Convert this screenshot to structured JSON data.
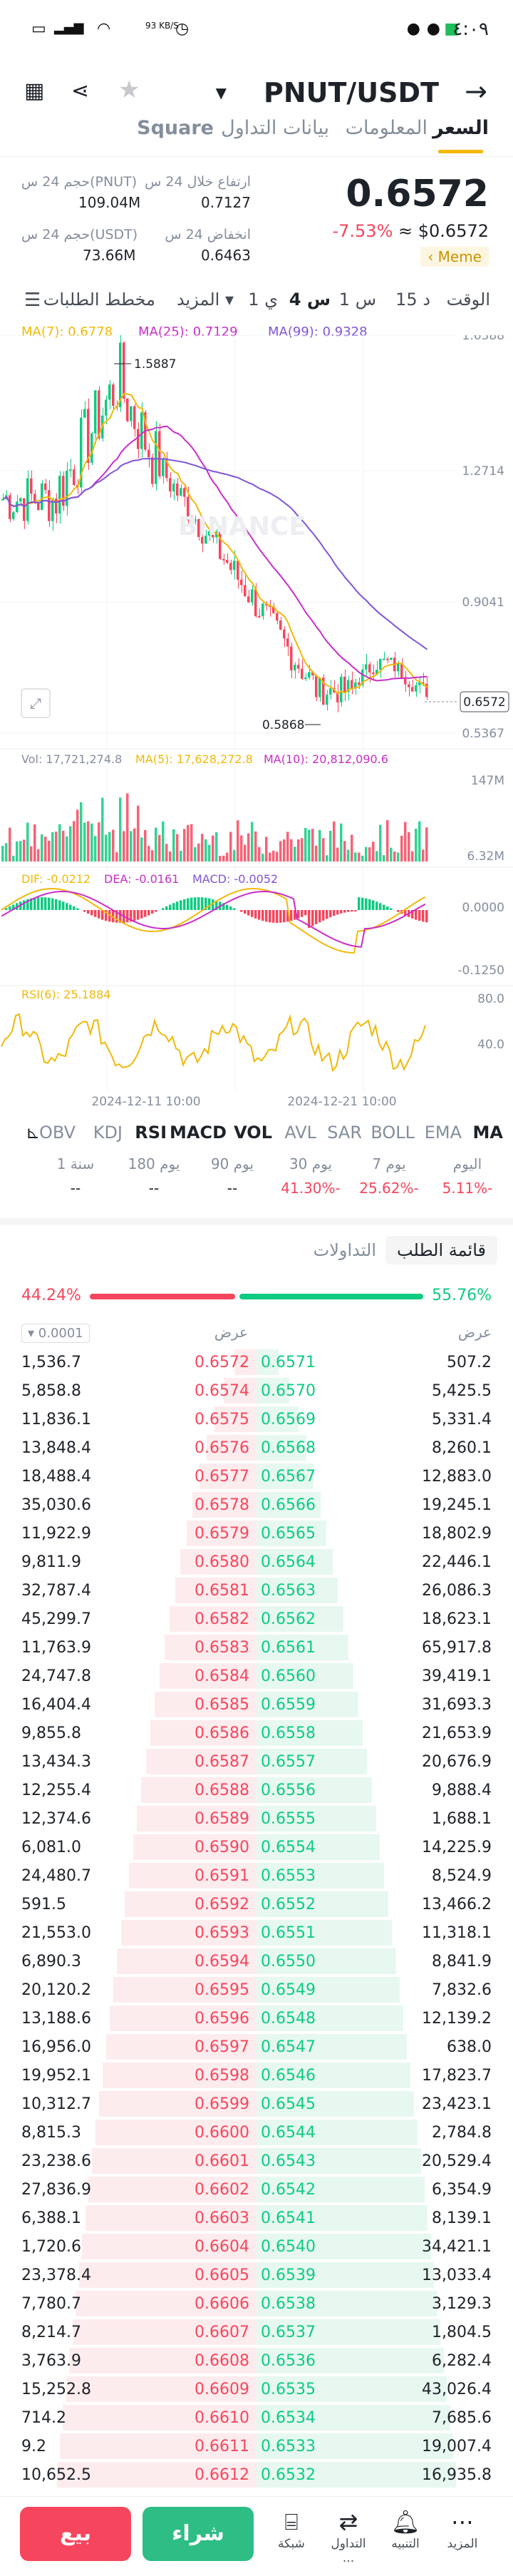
{
  "status": {
    "time": "٤:٠٩",
    "net": "93 KB/S"
  },
  "header": {
    "pair": "PNUT/USDT",
    "back_icon": "arrow-right-icon"
  },
  "tabs": [
    "السعر",
    "المعلومات",
    "بيانات التداول",
    "Square"
  ],
  "ticker": {
    "price": "0.6572",
    "change_pct": "-7.53%",
    "approx": "≈ $0.6572",
    "tag": "Meme"
  },
  "stats": {
    "high_label": "ارتفاع خلال 24 س",
    "high_value": "0.7127",
    "low_label": "انخفاض 24 س",
    "low_value": "0.6463",
    "vol_base_label": "حجم 24 س(PNUT)",
    "vol_base_value": "109.04M",
    "vol_quote_label": "حجم 24 س(USDT)",
    "vol_quote_value": "73.66M"
  },
  "timeframes": {
    "time": "الوقت",
    "m15": "15 د",
    "h1": "1 س",
    "h4": "4 س",
    "d1": "1 ي",
    "more": "المزيد ▾",
    "depth": "مخطط الطلبات"
  },
  "ma_line": {
    "ma7": "MA(7): 0.6778",
    "ma25": "MA(25): 0.7129",
    "ma99": "MA(99): 0.9328"
  },
  "chart_data": [
    {
      "type": "candlestick",
      "name": "price",
      "y_ticks": [
        "1.6388",
        "1.2714",
        "0.9041",
        "0.5367"
      ],
      "ylim": [
        0.5367,
        1.6388
      ],
      "high_label": "1.5887",
      "low_label": "0.5868",
      "last": "0.6572",
      "watermark": "BINANCE",
      "series": [
        {
          "name": "MA(7)",
          "last": 0.6778
        },
        {
          "name": "MA(25)",
          "last": 0.7129
        },
        {
          "name": "MA(99)",
          "last": 0.9328
        }
      ]
    },
    {
      "type": "bar",
      "name": "volume",
      "header": {
        "vol": "Vol: 17,721,274.8",
        "ma5": "MA(5): 17,628,272.8",
        "ma10": "MA(10): 20,812,090.6"
      },
      "y_ticks": [
        "147M",
        "6.32M"
      ]
    },
    {
      "type": "bar",
      "name": "macd",
      "header": {
        "dif": "DIF: -0.0212",
        "dea": "DEA: -0.0161",
        "macd": "MACD: -0.0052"
      },
      "y_ticks": [
        "0.0000",
        "-0.1250"
      ]
    },
    {
      "type": "line",
      "name": "rsi",
      "header": {
        "rsi": "RSI(6): 25.1884"
      },
      "y_ticks": [
        "80.0",
        "40.0"
      ],
      "x_ticks": [
        "2024-12-11 10:00",
        "2024-12-21 10:00"
      ]
    }
  ],
  "indicators": [
    "MA",
    "EMA",
    "BOLL",
    "SAR",
    "AVL",
    "VOL",
    "MACD",
    "RSI",
    "KDJ",
    "OBV"
  ],
  "performance": [
    {
      "label": "اليوم",
      "value": "5.11%-"
    },
    {
      "label": "7 يوم",
      "value": "25.62%-"
    },
    {
      "label": "30 يوم",
      "value": "41.30%-"
    },
    {
      "label": "90 يوم",
      "value": "--"
    },
    {
      "label": "180 يوم",
      "value": "--"
    },
    {
      "label": "1 سنة",
      "value": "--"
    }
  ],
  "orderbook": {
    "tab_book": "قائمة الطلب",
    "tab_trades": "التداولات",
    "bid_pct": "55.76%",
    "ask_pct": "44.24%",
    "col_bid": "عرض",
    "col_ask": "عرض",
    "precision": "0.0001",
    "rows": [
      [
        "1,536.7",
        "0.6572",
        "0.6571",
        "507.2"
      ],
      [
        "5,858.8",
        "0.6574",
        "0.6570",
        "5,425.5"
      ],
      [
        "11,836.1",
        "0.6575",
        "0.6569",
        "5,331.4"
      ],
      [
        "13,848.4",
        "0.6576",
        "0.6568",
        "8,260.1"
      ],
      [
        "18,488.4",
        "0.6577",
        "0.6567",
        "12,883.0"
      ],
      [
        "35,030.6",
        "0.6578",
        "0.6566",
        "19,245.1"
      ],
      [
        "11,922.9",
        "0.6579",
        "0.6565",
        "18,802.9"
      ],
      [
        "9,811.9",
        "0.6580",
        "0.6564",
        "22,446.1"
      ],
      [
        "32,787.4",
        "0.6581",
        "0.6563",
        "26,086.3"
      ],
      [
        "45,299.7",
        "0.6582",
        "0.6562",
        "18,623.1"
      ],
      [
        "11,763.9",
        "0.6583",
        "0.6561",
        "65,917.8"
      ],
      [
        "24,747.8",
        "0.6584",
        "0.6560",
        "39,419.1"
      ],
      [
        "16,404.4",
        "0.6585",
        "0.6559",
        "31,693.3"
      ],
      [
        "9,855.8",
        "0.6586",
        "0.6558",
        "21,653.9"
      ],
      [
        "13,434.3",
        "0.6587",
        "0.6557",
        "20,676.9"
      ],
      [
        "12,255.4",
        "0.6588",
        "0.6556",
        "9,888.4"
      ],
      [
        "12,374.6",
        "0.6589",
        "0.6555",
        "1,688.1"
      ],
      [
        "6,081.0",
        "0.6590",
        "0.6554",
        "14,225.9"
      ],
      [
        "24,480.7",
        "0.6591",
        "0.6553",
        "8,524.9"
      ],
      [
        "591.5",
        "0.6592",
        "0.6552",
        "13,466.2"
      ],
      [
        "21,553.0",
        "0.6593",
        "0.6551",
        "11,318.1"
      ],
      [
        "6,890.3",
        "0.6594",
        "0.6550",
        "8,841.9"
      ],
      [
        "20,120.2",
        "0.6595",
        "0.6549",
        "7,832.6"
      ],
      [
        "13,188.6",
        "0.6596",
        "0.6548",
        "12,139.2"
      ],
      [
        "16,956.0",
        "0.6597",
        "0.6547",
        "638.0"
      ],
      [
        "19,952.1",
        "0.6598",
        "0.6546",
        "17,823.7"
      ],
      [
        "10,312.7",
        "0.6599",
        "0.6545",
        "23,423.1"
      ],
      [
        "8,815.3",
        "0.6600",
        "0.6544",
        "2,784.8"
      ],
      [
        "23,238.6",
        "0.6601",
        "0.6543",
        "20,529.4"
      ],
      [
        "27,836.9",
        "0.6602",
        "0.6542",
        "6,354.9"
      ],
      [
        "6,388.1",
        "0.6603",
        "0.6541",
        "8,139.1"
      ],
      [
        "1,720.6",
        "0.6604",
        "0.6540",
        "34,421.1"
      ],
      [
        "23,378.4",
        "0.6605",
        "0.6539",
        "13,033.4"
      ],
      [
        "7,780.7",
        "0.6606",
        "0.6538",
        "3,129.3"
      ],
      [
        "8,214.7",
        "0.6607",
        "0.6537",
        "1,804.5"
      ],
      [
        "3,763.9",
        "0.6608",
        "0.6536",
        "6,282.4"
      ],
      [
        "15,252.8",
        "0.6609",
        "0.6535",
        "43,026.4"
      ],
      [
        "714.2",
        "0.6610",
        "0.6534",
        "7,685.6"
      ],
      [
        "9.2",
        "0.6611",
        "0.6533",
        "19,007.4"
      ],
      [
        "10,652.5",
        "0.6612",
        "0.6532",
        "16,935.8"
      ]
    ]
  },
  "bottom": {
    "buy": "شراء",
    "sell": "بيع",
    "nav": [
      {
        "label": "المزيد",
        "icon": "more-icon"
      },
      {
        "label": "التنبيه",
        "icon": "bell-icon"
      },
      {
        "label": "التداول ...",
        "icon": "trade-icon"
      },
      {
        "label": "شبكة",
        "icon": "grid-bot-icon"
      }
    ]
  },
  "colors": {
    "up": "#0ecb81",
    "down": "#f6465d",
    "accent": "#f0b90b",
    "ma7": "#f0b90b",
    "ma25": "#c92ec9",
    "ma99": "#8055d8"
  }
}
